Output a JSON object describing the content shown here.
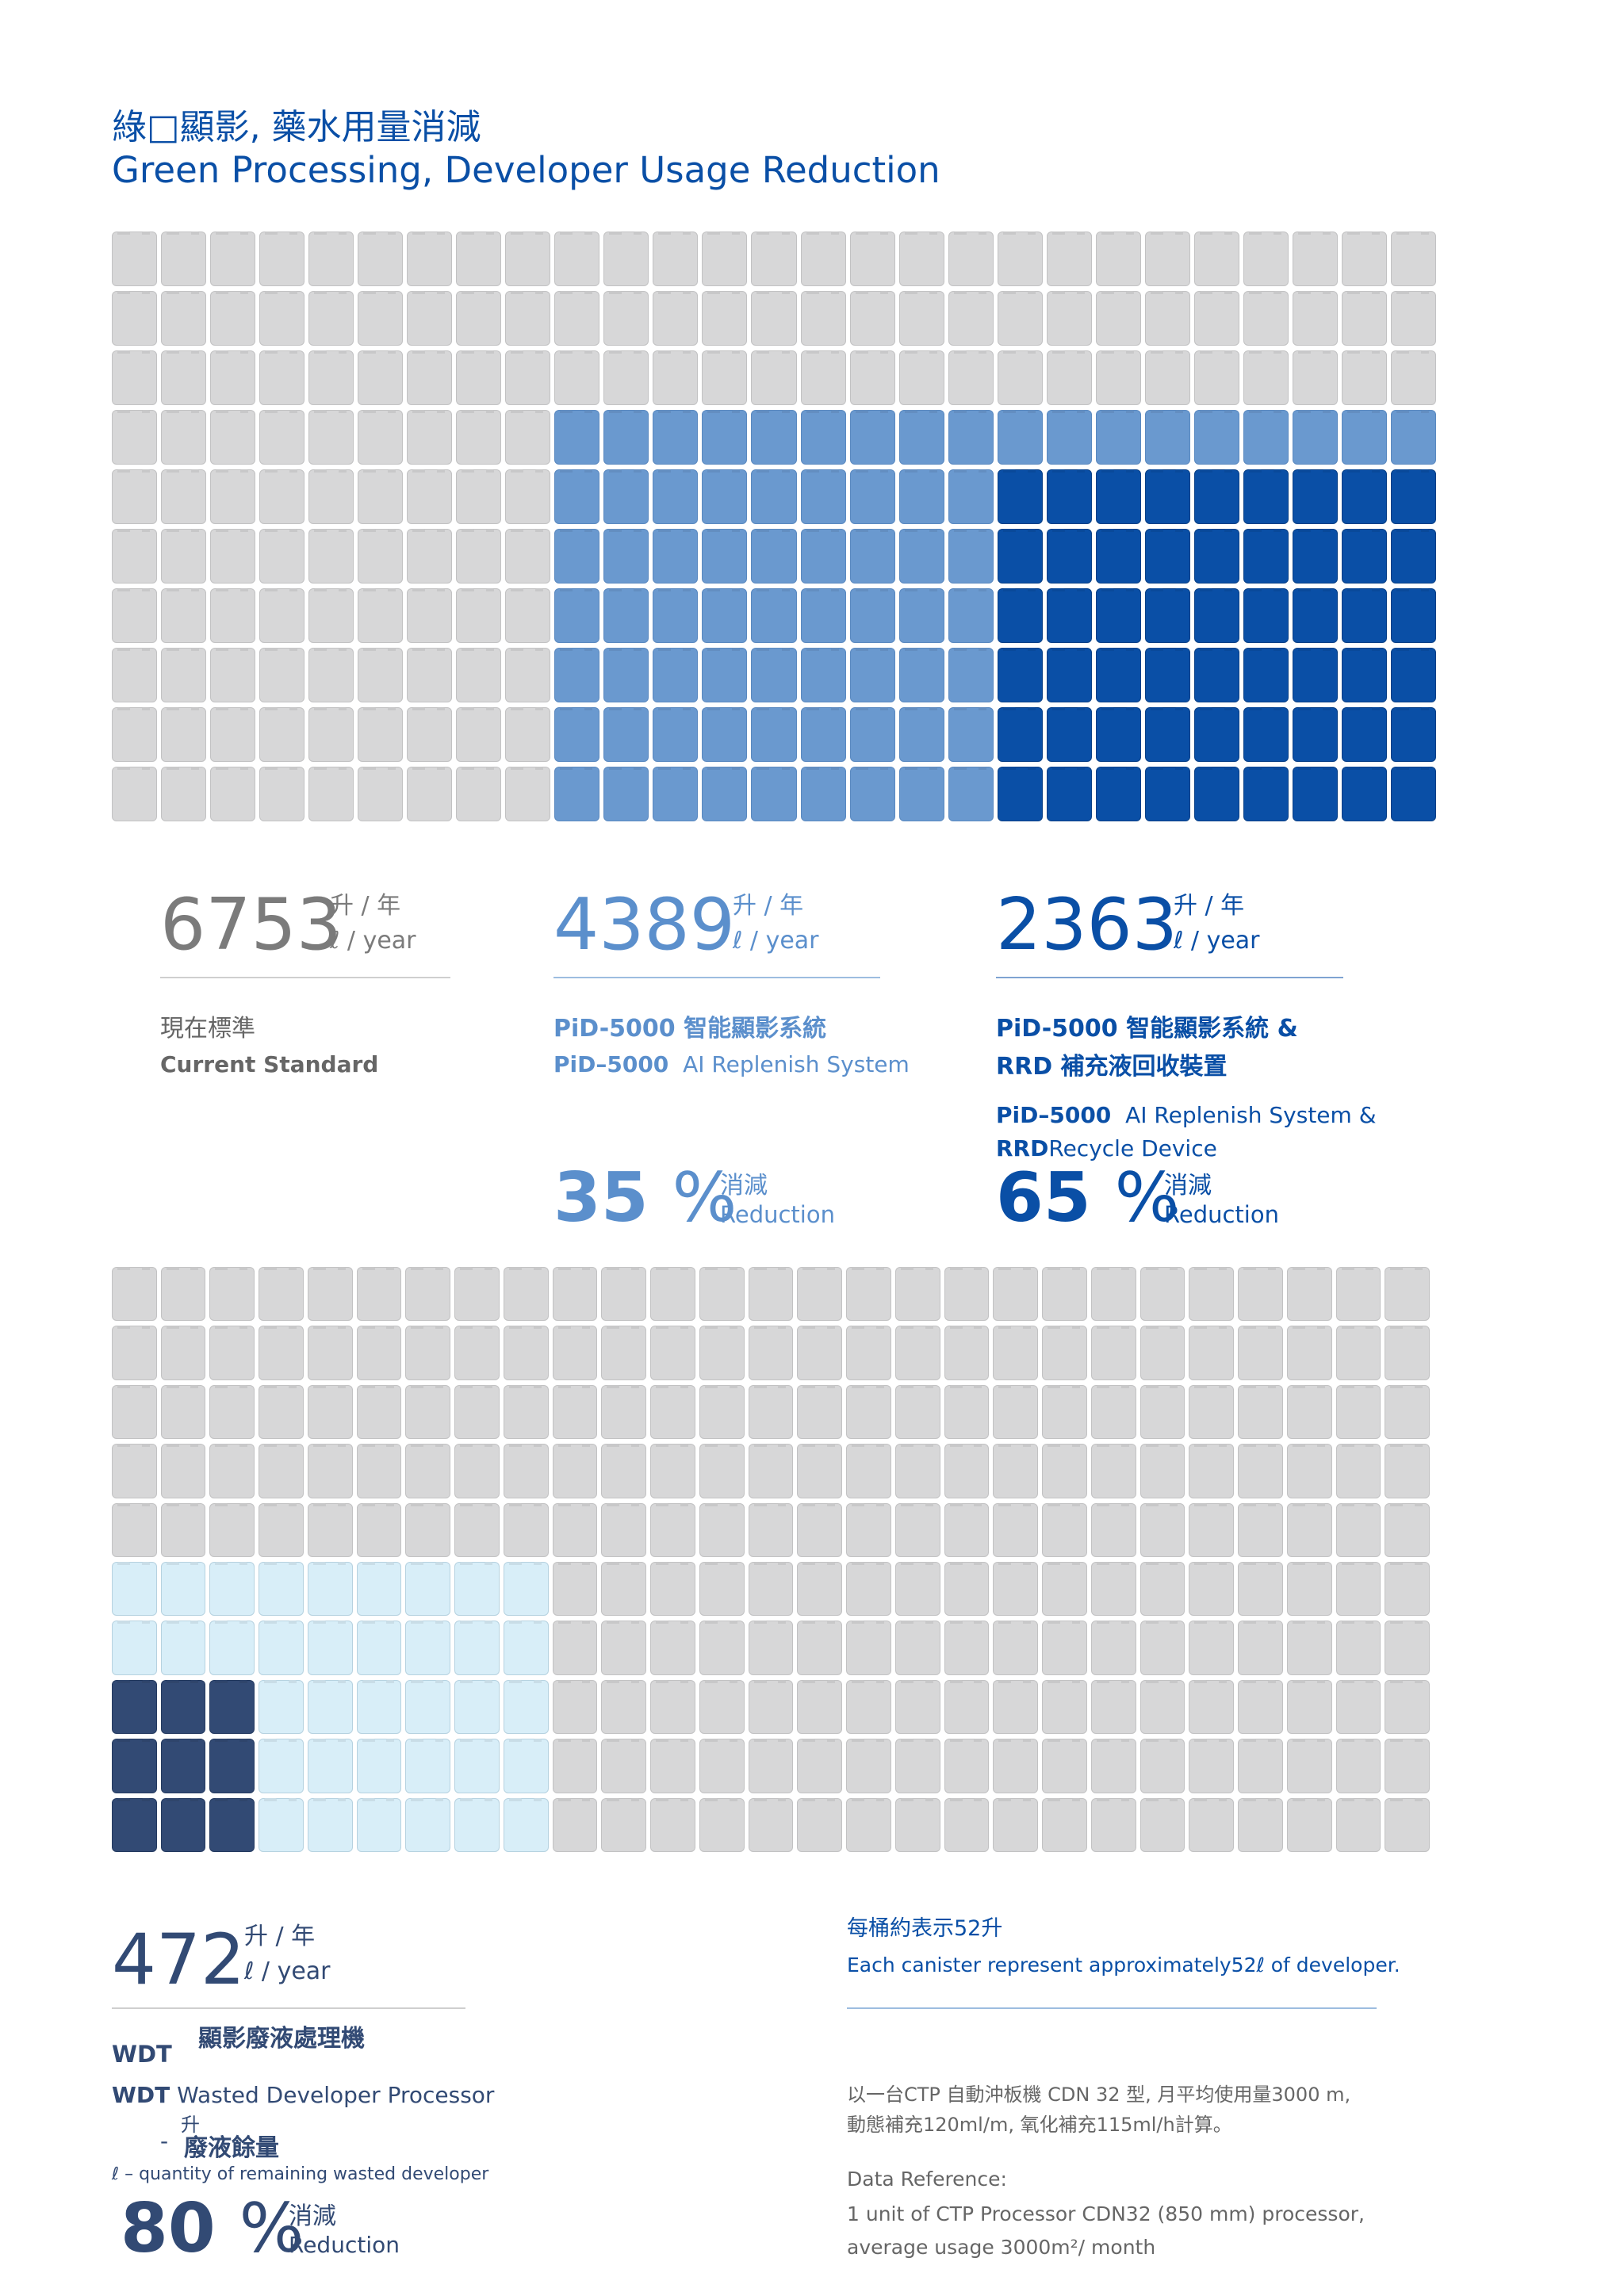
{
  "title": {
    "zh": "綠□顯影, 藥水用量消減",
    "en": "Green Processing, Developer Usage Reduction"
  },
  "colors": {
    "gray": "#d7d7d8",
    "mid_blue": "#6a99cf",
    "dark_blue": "#0a4fa6",
    "pale_blue": "#d8eef8",
    "navy": "#324a74",
    "title_blue": "#0a4fa6"
  },
  "stats": [
    {
      "value": "6753",
      "unit_zh": "升 / 年",
      "unit_en": "ℓ / year",
      "label_zh": "現在標準",
      "label_en": "Current Standard"
    },
    {
      "value": "4389",
      "unit_zh": "升 / 年",
      "unit_en": "ℓ / year",
      "label_zh": "PiD-5000 智能顯影系統",
      "label_en_bold": "PiD–5000",
      "label_en": "AI Replenish System",
      "pct": "35",
      "pct_sign": "%",
      "pct_zh": "消減",
      "pct_en": "Reduction"
    },
    {
      "value": "2363",
      "unit_zh": "升 / 年",
      "unit_en": "ℓ / year",
      "label_zh_1": "PiD-5000 智能顯影系統 &",
      "label_zh_2": "RRD 補充液回收裝置",
      "label_en_1_bold": "PiD–5000",
      "label_en_1": "AI Replenish System &",
      "label_en_2_bold": "RRD",
      "label_en_2": "Recycle Device",
      "pct": "65",
      "pct_sign": "%",
      "pct_zh": "消減",
      "pct_en": "Reduction"
    }
  ],
  "wdt": {
    "value": "472",
    "unit_zh": "升 / 年",
    "unit_en": "ℓ / year",
    "name_zh": "顯影廢液處理機",
    "abbr": "WDT",
    "abbr2": "WDT",
    "name_en": "Wasted Developer Processor",
    "sub_unit": "升",
    "dash": "-",
    "remain_zh": "廢液餘量",
    "remain_en": "ℓ – quantity of remaining wasted developer",
    "pct": "80",
    "pct_sign": "%",
    "pct_zh": "消減",
    "pct_en": "Reduction"
  },
  "canister_note": {
    "zh": "每桶約表示52升",
    "en": "Each canister represent approximately52ℓ of developer."
  },
  "footnote": {
    "zh_1": "以一台CTP 自動沖板機 CDN 32 型, 月平均使用量3000 m,",
    "zh_2": "動態補充120ml/m, 氧化補充115ml/h計算。",
    "ref_title": "Data Reference:",
    "ref_1": "1 unit of CTP Processor CDN32 (850 mm) processor,",
    "ref_2": "average usage 3000m²/ month"
  },
  "chart_data": [
    {
      "type": "table",
      "description": "canister grid 1",
      "rows": 10,
      "cols": 27,
      "total_canisters": 270,
      "groups": [
        {
          "label": "6753",
          "canisters": 270
        },
        {
          "label": "4389",
          "canisters": 126
        },
        {
          "label": "2363",
          "canisters": 60
        }
      ]
    },
    {
      "type": "table",
      "description": "canister grid 2",
      "rows": 10,
      "cols": 27,
      "total_canisters": 270,
      "groups": [
        {
          "label": "pale",
          "canisters": 45
        },
        {
          "label": "472",
          "canisters": 9
        }
      ]
    }
  ]
}
